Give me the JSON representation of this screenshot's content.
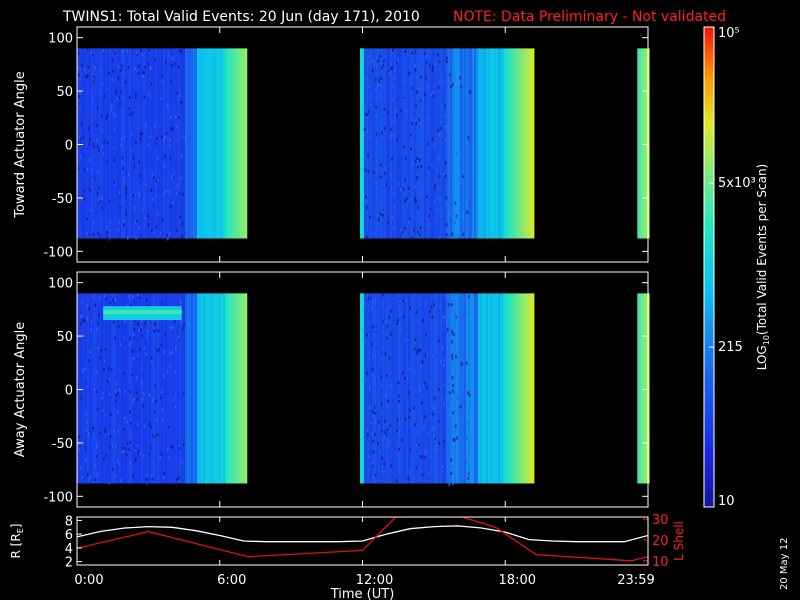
{
  "header": {
    "title": "TWINS1: Total Valid Events: 20 Jun (day 171), 2010",
    "note": "NOTE: Data Preliminary - Not validated"
  },
  "colors": {
    "background": "#000000",
    "note": "#ff2020",
    "r_line": "#ffffff",
    "lshell_line": "#e01010",
    "axis": "#ffffff"
  },
  "colorbar": {
    "label": "LOG10(Total Valid Events per Scan)",
    "label_main": "LOG",
    "label_sub": "10",
    "label_rest": "(Total Valid Events per Scan)",
    "ticks": [
      {
        "label": "10",
        "value": 10
      },
      {
        "label": "215",
        "value": 215
      },
      {
        "label": "5x10³",
        "value": 5000
      },
      {
        "label": "10⁵",
        "value": 100000
      }
    ],
    "scale": "log",
    "range": [
      10,
      100000
    ]
  },
  "chart_data": [
    {
      "type": "heatmap",
      "panel": "toward",
      "ylabel": "Toward Actuator Angle",
      "ylim": [
        -110,
        110
      ],
      "yticks": [
        "100",
        "50",
        "0",
        "-50",
        "-100"
      ],
      "xlim_hours": [
        0,
        24
      ],
      "angle_range": [
        -88,
        90
      ],
      "segments": [
        {
          "start_h": 0.0,
          "end_h": 7.1
        },
        {
          "start_h": 11.9,
          "end_h": 19.2
        },
        {
          "start_h": 23.55,
          "end_h": 24.0
        }
      ]
    },
    {
      "type": "heatmap",
      "panel": "away",
      "ylabel": "Away Actuator Angle",
      "ylim": [
        -110,
        110
      ],
      "yticks": [
        "100",
        "50",
        "0",
        "-50",
        "-100"
      ],
      "xlim_hours": [
        0,
        24
      ],
      "angle_range": [
        -88,
        90
      ],
      "segments": [
        {
          "start_h": 0.0,
          "end_h": 7.1
        },
        {
          "start_h": 11.9,
          "end_h": 19.2
        },
        {
          "start_h": 23.55,
          "end_h": 24.0
        }
      ],
      "bright_band": {
        "start_h": 1.1,
        "end_h": 4.4,
        "angle_min": 65,
        "angle_max": 78
      }
    },
    {
      "type": "line",
      "panel": "orbit",
      "ylabel": "R [RE]",
      "ylabel_main": "R [R",
      "ylabel_sub": "E",
      "ylabel_end": "]",
      "ylim": [
        1.5,
        8.5
      ],
      "yticks": [
        "8",
        "6",
        "4",
        "2"
      ],
      "y2label": "L Shell",
      "y2lim": [
        8,
        31
      ],
      "y2ticks": [
        "30",
        "20",
        "10"
      ],
      "xlabel": "Time (UT)",
      "xticks": [
        "0:00",
        "6:00",
        "12:00",
        "18:00",
        "23:59"
      ],
      "series": [
        {
          "name": "R",
          "x": [
            0,
            1,
            2,
            3,
            4,
            5,
            6,
            7,
            8,
            9,
            10,
            11,
            12,
            13,
            14,
            15,
            16,
            17,
            18,
            19,
            20,
            21,
            22,
            23,
            24
          ],
          "values": [
            5.6,
            6.4,
            6.9,
            7.1,
            7.0,
            6.5,
            5.8,
            5.0,
            4.9,
            4.9,
            4.9,
            4.9,
            5.0,
            6.0,
            6.8,
            7.1,
            7.2,
            6.9,
            6.3,
            5.2,
            5.0,
            4.9,
            4.9,
            4.9,
            5.8
          ]
        },
        {
          "name": "L Shell",
          "x": [
            0,
            3,
            7.2,
            12,
            13.4,
            16.2,
            17.6,
            19.3,
            23.3,
            24
          ],
          "values": [
            16,
            24,
            12,
            15,
            31,
            31,
            26,
            13,
            10,
            12
          ]
        }
      ]
    }
  ],
  "side_date": "20 May 12"
}
